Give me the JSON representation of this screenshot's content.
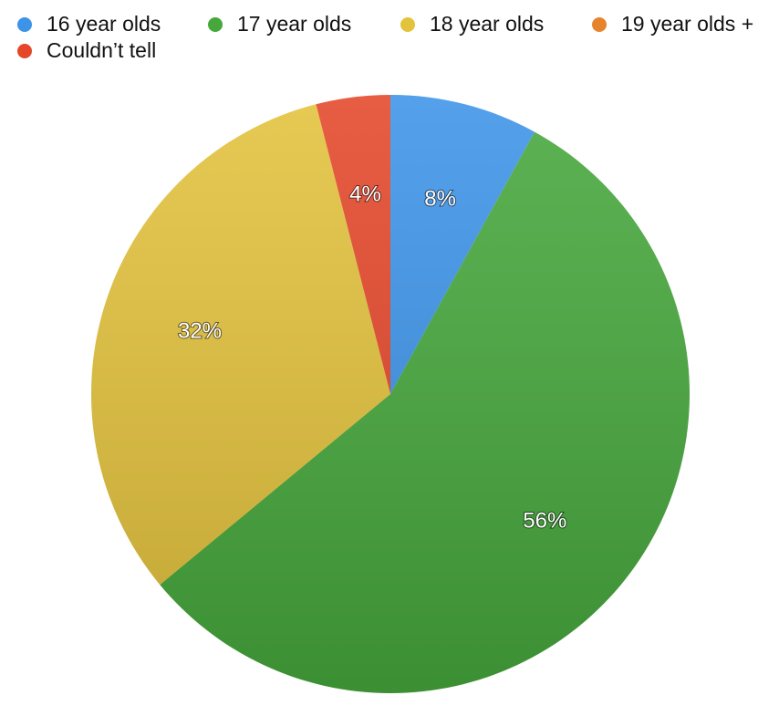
{
  "chart_data": {
    "type": "pie",
    "categories": [
      "16 year olds",
      "17 year olds",
      "18 year olds",
      "19 year olds +",
      "Couldn’t tell"
    ],
    "values": [
      8,
      56,
      32,
      0,
      4
    ],
    "value_labels": [
      "8%",
      "56%",
      "32%",
      null,
      "4%"
    ],
    "colors": [
      "#3d93e8",
      "#46a83c",
      "#e3c23c",
      "#e7832c",
      "#e4472a"
    ],
    "legend": "top"
  }
}
